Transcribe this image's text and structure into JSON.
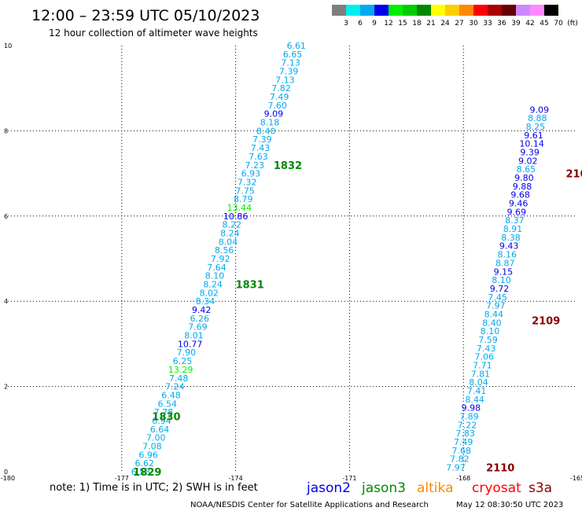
{
  "header": {
    "title": "12:00 – 23:59 UTC 05/10/2023",
    "subtitle": "12 hour collection of altimeter wave heights"
  },
  "color_scale": {
    "colors": [
      "#7f7f7f",
      "#00eeee",
      "#00aaee",
      "#0000ee",
      "#00ee00",
      "#00cc00",
      "#008800",
      "#ffff00",
      "#ffcc00",
      "#ff8800",
      "#ff0000",
      "#aa0000",
      "#660000",
      "#cc88ff",
      "#ff88ff",
      "#000000"
    ],
    "labels": [
      "3",
      "6",
      "9",
      "12",
      "15",
      "18",
      "21",
      "24",
      "27",
      "30",
      "33",
      "36",
      "39",
      "42",
      "45",
      "70",
      "(ft)"
    ]
  },
  "chart_data": {
    "type": "scatter",
    "x_ticks": [
      "-180",
      "-177",
      "-174",
      "-171",
      "-168",
      "-165"
    ],
    "y_ticks": [
      "0",
      "2",
      "4",
      "6",
      "8",
      "10"
    ],
    "xlim": [
      -180,
      -165
    ],
    "ylim": [
      0,
      10
    ],
    "grid": true,
    "track_labels": [
      {
        "text": "1829",
        "x": -176.7,
        "y": 0.0,
        "color": "#008800"
      },
      {
        "text": "1830",
        "x": -176.2,
        "y": 1.3,
        "color": "#008800"
      },
      {
        "text": "1831",
        "x": -174.0,
        "y": 4.4,
        "color": "#008800"
      },
      {
        "text": "1832",
        "x": -173.0,
        "y": 7.2,
        "color": "#008800"
      },
      {
        "text": "2110",
        "x": -167.4,
        "y": 0.1,
        "color": "#880000"
      },
      {
        "text": "2109",
        "x": -166.2,
        "y": 3.55,
        "color": "#880000"
      },
      {
        "text": "210",
        "x": -165.3,
        "y": 7.0,
        "color": "#880000"
      }
    ],
    "series": [
      {
        "name": "jason3 tracks 1829-1832",
        "points": [
          {
            "label": "6.58",
            "x": -176.5,
            "y": 0.0
          },
          {
            "label": "6.62",
            "x": -176.4,
            "y": 0.2
          },
          {
            "label": "6.96",
            "x": -176.3,
            "y": 0.4
          },
          {
            "label": "7.08",
            "x": -176.2,
            "y": 0.6
          },
          {
            "label": "7.00",
            "x": -176.1,
            "y": 0.8
          },
          {
            "label": "6.64",
            "x": -176.0,
            "y": 1.0
          },
          {
            "label": "6.94",
            "x": -175.95,
            "y": 1.2
          },
          {
            "label": "7.78",
            "x": -175.9,
            "y": 1.4
          },
          {
            "label": "6.54",
            "x": -175.8,
            "y": 1.6
          },
          {
            "label": "6.48",
            "x": -175.7,
            "y": 1.8
          },
          {
            "label": "7.24",
            "x": -175.6,
            "y": 2.0
          },
          {
            "label": "7.48",
            "x": -175.5,
            "y": 2.2
          },
          {
            "label": "13.29",
            "x": -175.45,
            "y": 2.4
          },
          {
            "label": "6.25",
            "x": -175.4,
            "y": 2.6
          },
          {
            "label": "7.90",
            "x": -175.3,
            "y": 2.8
          },
          {
            "label": "10.77",
            "x": -175.2,
            "y": 3.0
          },
          {
            "label": "8.01",
            "x": -175.1,
            "y": 3.2
          },
          {
            "label": "7.69",
            "x": -175.0,
            "y": 3.4
          },
          {
            "label": "6.26",
            "x": -174.95,
            "y": 3.6
          },
          {
            "label": "9.42",
            "x": -174.9,
            "y": 3.8
          },
          {
            "label": "8.34",
            "x": -174.8,
            "y": 4.0
          },
          {
            "label": "8.02",
            "x": -174.7,
            "y": 4.2
          },
          {
            "label": "8.24",
            "x": -174.6,
            "y": 4.4
          },
          {
            "label": "8.10",
            "x": -174.55,
            "y": 4.6
          },
          {
            "label": "7.64",
            "x": -174.5,
            "y": 4.8
          },
          {
            "label": "7.92",
            "x": -174.4,
            "y": 5.0
          },
          {
            "label": "8.56",
            "x": -174.3,
            "y": 5.2
          },
          {
            "label": "8.04",
            "x": -174.2,
            "y": 5.4
          },
          {
            "label": "8.24",
            "x": -174.15,
            "y": 5.6
          },
          {
            "label": "8.22",
            "x": -174.1,
            "y": 5.8
          },
          {
            "label": "10.86",
            "x": -174.0,
            "y": 6.0
          },
          {
            "label": "13.44",
            "x": -173.9,
            "y": 6.2
          },
          {
            "label": "8.79",
            "x": -173.8,
            "y": 6.4
          },
          {
            "label": "7.75",
            "x": -173.75,
            "y": 6.6
          },
          {
            "label": "7.32",
            "x": -173.7,
            "y": 6.8
          },
          {
            "label": "6.93",
            "x": -173.6,
            "y": 7.0
          },
          {
            "label": "7.23",
            "x": -173.5,
            "y": 7.2
          },
          {
            "label": "7.63",
            "x": -173.4,
            "y": 7.4
          },
          {
            "label": "7.43",
            "x": -173.35,
            "y": 7.6
          },
          {
            "label": "7.39",
            "x": -173.3,
            "y": 7.8
          },
          {
            "label": "8.40",
            "x": -173.2,
            "y": 8.0
          },
          {
            "label": "8.18",
            "x": -173.1,
            "y": 8.2
          },
          {
            "label": "9.09",
            "x": -173.0,
            "y": 8.4
          },
          {
            "label": "7.60",
            "x": -172.9,
            "y": 8.6
          },
          {
            "label": "7.49",
            "x": -172.85,
            "y": 8.8
          },
          {
            "label": "7.82",
            "x": -172.8,
            "y": 9.0
          },
          {
            "label": "7.13",
            "x": -172.7,
            "y": 9.2
          },
          {
            "label": "7.39",
            "x": -172.6,
            "y": 9.4
          },
          {
            "label": "7.13",
            "x": -172.55,
            "y": 9.6
          },
          {
            "label": "6.65",
            "x": -172.5,
            "y": 9.8
          },
          {
            "label": "6.61",
            "x": -172.4,
            "y": 10.0
          }
        ]
      },
      {
        "name": "cryosat tracks 2109-2110",
        "points": [
          {
            "label": "7.97",
            "x": -168.2,
            "y": 0.1
          },
          {
            "label": "7.82",
            "x": -168.1,
            "y": 0.3
          },
          {
            "label": "7.68",
            "x": -168.05,
            "y": 0.5
          },
          {
            "label": "7.49",
            "x": -168.0,
            "y": 0.7
          },
          {
            "label": "7.83",
            "x": -167.95,
            "y": 0.9
          },
          {
            "label": "7.22",
            "x": -167.9,
            "y": 1.1
          },
          {
            "label": "7.89",
            "x": -167.85,
            "y": 1.3
          },
          {
            "label": "9.98",
            "x": -167.8,
            "y": 1.5
          },
          {
            "label": "8.44",
            "x": -167.7,
            "y": 1.7
          },
          {
            "label": "7.41",
            "x": -167.65,
            "y": 1.9
          },
          {
            "label": "8.04",
            "x": -167.6,
            "y": 2.1
          },
          {
            "label": "7.81",
            "x": -167.55,
            "y": 2.3
          },
          {
            "label": "7.71",
            "x": -167.5,
            "y": 2.5
          },
          {
            "label": "7.06",
            "x": -167.45,
            "y": 2.7
          },
          {
            "label": "7.43",
            "x": -167.4,
            "y": 2.9
          },
          {
            "label": "7.59",
            "x": -167.35,
            "y": 3.1
          },
          {
            "label": "8.10",
            "x": -167.3,
            "y": 3.3
          },
          {
            "label": "8.40",
            "x": -167.25,
            "y": 3.5
          },
          {
            "label": "8.44",
            "x": -167.2,
            "y": 3.7
          },
          {
            "label": "7.97",
            "x": -167.15,
            "y": 3.9
          },
          {
            "label": "7.45",
            "x": -167.1,
            "y": 4.1
          },
          {
            "label": "9.72",
            "x": -167.05,
            "y": 4.3
          },
          {
            "label": "8.10",
            "x": -167.0,
            "y": 4.5
          },
          {
            "label": "9.15",
            "x": -166.95,
            "y": 4.7
          },
          {
            "label": "8.87",
            "x": -166.9,
            "y": 4.9
          },
          {
            "label": "8.16",
            "x": -166.85,
            "y": 5.1
          },
          {
            "label": "9.43",
            "x": -166.8,
            "y": 5.3
          },
          {
            "label": "8.38",
            "x": -166.75,
            "y": 5.5
          },
          {
            "label": "8.91",
            "x": -166.7,
            "y": 5.7
          },
          {
            "label": "8.37",
            "x": -166.65,
            "y": 5.9
          },
          {
            "label": "9.69",
            "x": -166.6,
            "y": 6.1
          },
          {
            "label": "9.46",
            "x": -166.55,
            "y": 6.3
          },
          {
            "label": "9.68",
            "x": -166.5,
            "y": 6.5
          },
          {
            "label": "9.88",
            "x": -166.45,
            "y": 6.7
          },
          {
            "label": "9.80",
            "x": -166.4,
            "y": 6.9
          },
          {
            "label": "8.65",
            "x": -166.35,
            "y": 7.1
          },
          {
            "label": "9.02",
            "x": -166.3,
            "y": 7.3
          },
          {
            "label": "9.39",
            "x": -166.25,
            "y": 7.5
          },
          {
            "label": "10.14",
            "x": -166.2,
            "y": 7.7
          },
          {
            "label": "9.61",
            "x": -166.15,
            "y": 7.9
          },
          {
            "label": "8.25",
            "x": -166.1,
            "y": 8.1
          },
          {
            "label": "8.88",
            "x": -166.05,
            "y": 8.3
          },
          {
            "label": "9.09",
            "x": -166.0,
            "y": 8.5
          }
        ]
      }
    ]
  },
  "footer": {
    "note": "note:  1) Time is in UTC;  2) SWH is in feet",
    "legend": [
      {
        "name": "jason2",
        "color": "#0000ee"
      },
      {
        "name": "jason3",
        "color": "#008800"
      },
      {
        "name": "altika",
        "color": "#ff8800"
      },
      {
        "name": "cryosat",
        "color": "#ff0000"
      },
      {
        "name": "s3a",
        "color": "#880000"
      }
    ],
    "credit": "NOAA/NESDIS Center for Satellite Applications and Research",
    "timestamp": "May 12 08:30:50 UTC 2023"
  }
}
